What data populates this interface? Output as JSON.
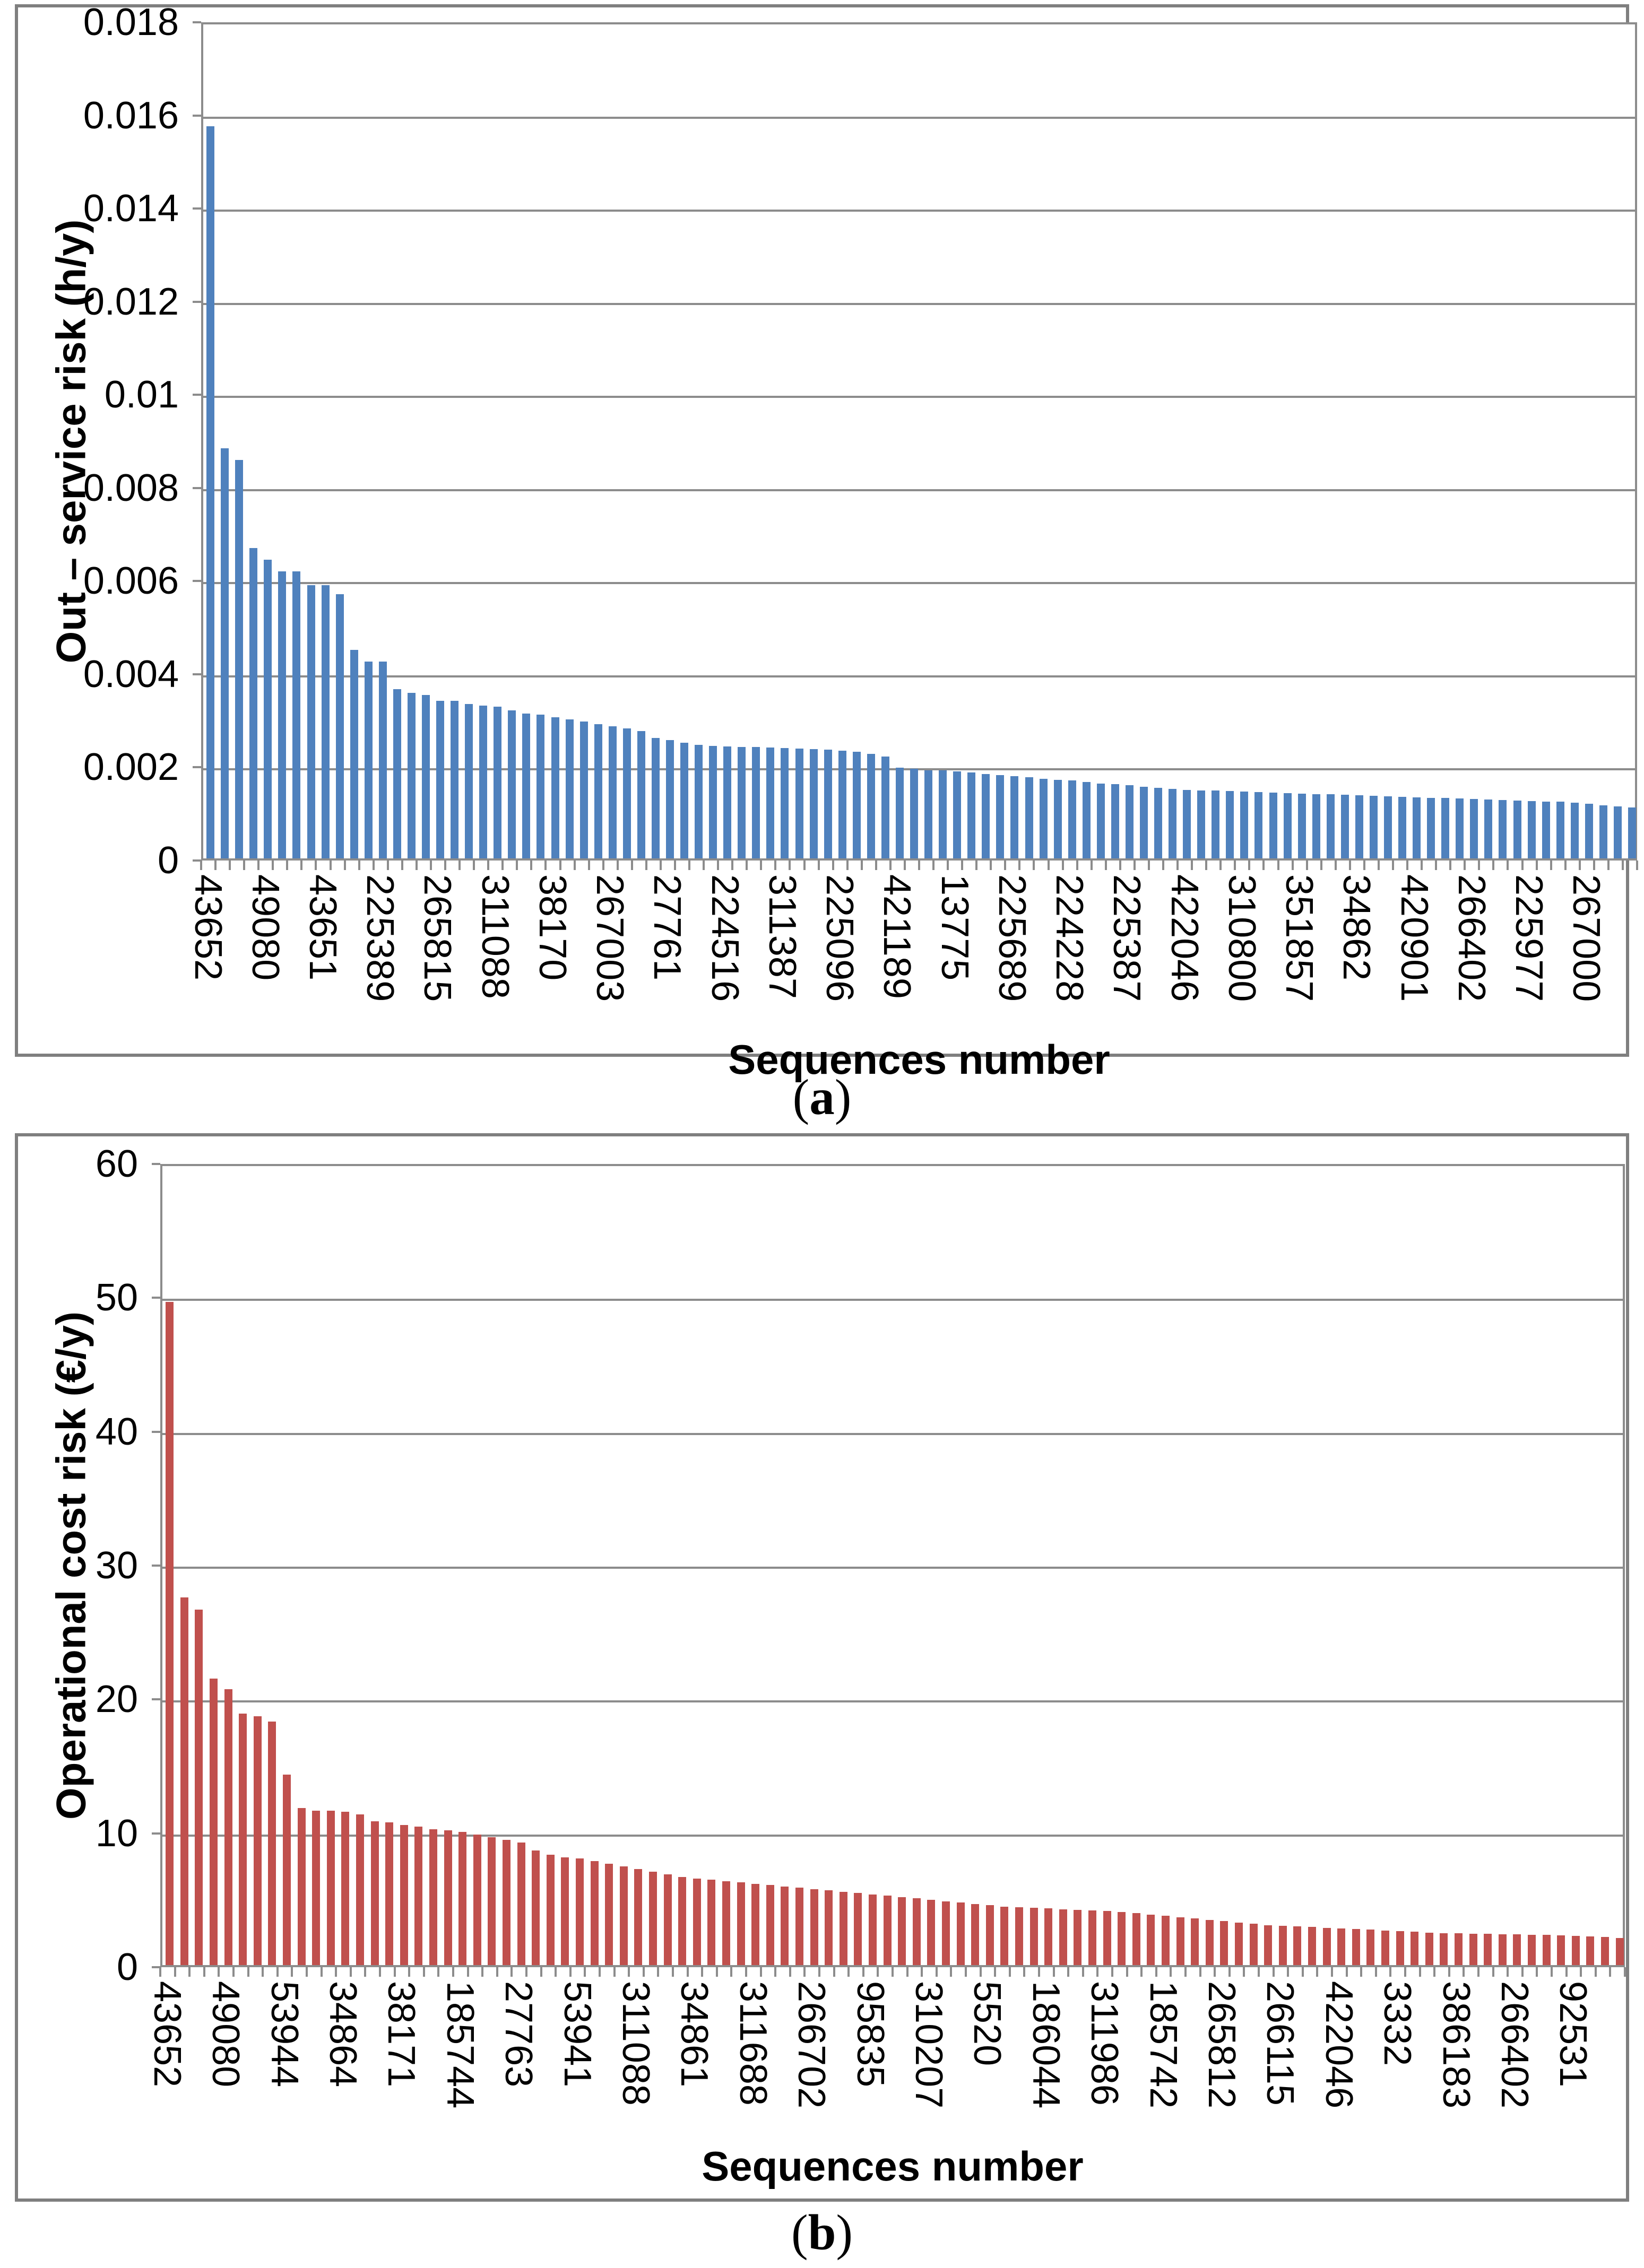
{
  "colors": {
    "bar_blue": "#4F81BD",
    "bar_red": "#C0504D",
    "gridline": "#8C8C8C",
    "frame": "#7F7F7F",
    "text": "#000000"
  },
  "captions": {
    "a": {
      "pre": "(",
      "letter": "a",
      "post": ")"
    },
    "b": {
      "pre": "(",
      "letter": "b",
      "post": ")"
    }
  },
  "chart_data": [
    {
      "id": "a",
      "type": "bar",
      "bar_color": "#4F81BD",
      "ylabel": "Out – service risk (h/y)",
      "xlabel": "Sequences number",
      "ylim": [
        0,
        0.018
      ],
      "ytick_step": 0.002,
      "grid": true,
      "legend": false,
      "ytick_labels": [
        "0.018",
        "0.016",
        "0.014",
        "0.012",
        "0.01",
        "0.008",
        "0.006",
        "0.004",
        "0.002",
        "0"
      ],
      "label_every": 4,
      "x_tick_labels": [
        "43652",
        "49080",
        "43651",
        "225389",
        "265815",
        "311088",
        "38170",
        "267003",
        "27761",
        "224516",
        "311387",
        "225096",
        "421189",
        "13775",
        "225689",
        "224228",
        "225387",
        "422046",
        "310800",
        "351857",
        "34862",
        "420901",
        "266402",
        "225977",
        "267000"
      ],
      "values": [
        0.0158,
        0.00885,
        0.0086,
        0.0067,
        0.00645,
        0.0062,
        0.0062,
        0.0059,
        0.0059,
        0.0057,
        0.0045,
        0.00425,
        0.00425,
        0.00365,
        0.00357,
        0.00353,
        0.0034,
        0.0034,
        0.00333,
        0.0033,
        0.00328,
        0.0032,
        0.00313,
        0.0031,
        0.00305,
        0.003,
        0.00295,
        0.0029,
        0.00285,
        0.0028,
        0.00275,
        0.0026,
        0.00255,
        0.0025,
        0.00245,
        0.00243,
        0.00242,
        0.00241,
        0.0024,
        0.00239,
        0.00238,
        0.00237,
        0.00236,
        0.00235,
        0.00233,
        0.0023,
        0.00225,
        0.0022,
        0.00196,
        0.00193,
        0.0019,
        0.0019,
        0.00188,
        0.00185,
        0.00182,
        0.0018,
        0.00178,
        0.00175,
        0.00172,
        0.0017,
        0.00168,
        0.00165,
        0.00162,
        0.0016,
        0.00158,
        0.00155,
        0.00152,
        0.0015,
        0.00148,
        0.00147,
        0.00146,
        0.00145,
        0.00144,
        0.00143,
        0.00142,
        0.00141,
        0.0014,
        0.00139,
        0.00138,
        0.00137,
        0.00136,
        0.00135,
        0.00134,
        0.00133,
        0.00132,
        0.00131,
        0.0013,
        0.00129,
        0.00128,
        0.00127,
        0.00126,
        0.00125,
        0.00124,
        0.00123,
        0.00122,
        0.0012,
        0.00118,
        0.00115,
        0.00112,
        0.0011
      ]
    },
    {
      "id": "b",
      "type": "bar",
      "bar_color": "#C0504D",
      "ylabel": "Operational cost risk (€/y)",
      "xlabel": "Sequences number",
      "ylim": [
        0,
        60
      ],
      "ytick_step": 10,
      "grid": true,
      "legend": false,
      "ytick_labels": [
        "60",
        "50",
        "40",
        "30",
        "20",
        "10",
        "0"
      ],
      "label_every": 4,
      "x_tick_labels": [
        "43652",
        "49080",
        "53944",
        "34864",
        "38171",
        "185744",
        "27763",
        "53941",
        "311088",
        "34861",
        "311688",
        "266702",
        "95835",
        "310207",
        "5520",
        "186044",
        "311986",
        "185742",
        "265812",
        "266115",
        "422046",
        "3332",
        "386183",
        "266402",
        "92531"
      ],
      "values": [
        49.8,
        27.6,
        26.7,
        21.5,
        20.7,
        18.9,
        18.7,
        18.3,
        14.3,
        11.8,
        11.6,
        11.6,
        11.5,
        11.3,
        10.8,
        10.7,
        10.5,
        10.4,
        10.2,
        10.1,
        10.0,
        9.8,
        9.6,
        9.4,
        9.2,
        8.6,
        8.3,
        8.1,
        8.0,
        7.8,
        7.6,
        7.4,
        7.2,
        7.0,
        6.8,
        6.6,
        6.5,
        6.4,
        6.3,
        6.2,
        6.1,
        6.0,
        5.9,
        5.8,
        5.7,
        5.6,
        5.5,
        5.4,
        5.3,
        5.2,
        5.1,
        5.0,
        4.9,
        4.8,
        4.7,
        4.6,
        4.5,
        4.4,
        4.35,
        4.3,
        4.25,
        4.2,
        4.15,
        4.1,
        4.05,
        4.0,
        3.9,
        3.8,
        3.7,
        3.6,
        3.5,
        3.4,
        3.3,
        3.2,
        3.1,
        3.0,
        2.95,
        2.9,
        2.85,
        2.8,
        2.75,
        2.7,
        2.65,
        2.6,
        2.55,
        2.5,
        2.45,
        2.4,
        2.38,
        2.36,
        2.34,
        2.32,
        2.3,
        2.28,
        2.26,
        2.24,
        2.2,
        2.15,
        2.1,
        2.05
      ]
    }
  ]
}
